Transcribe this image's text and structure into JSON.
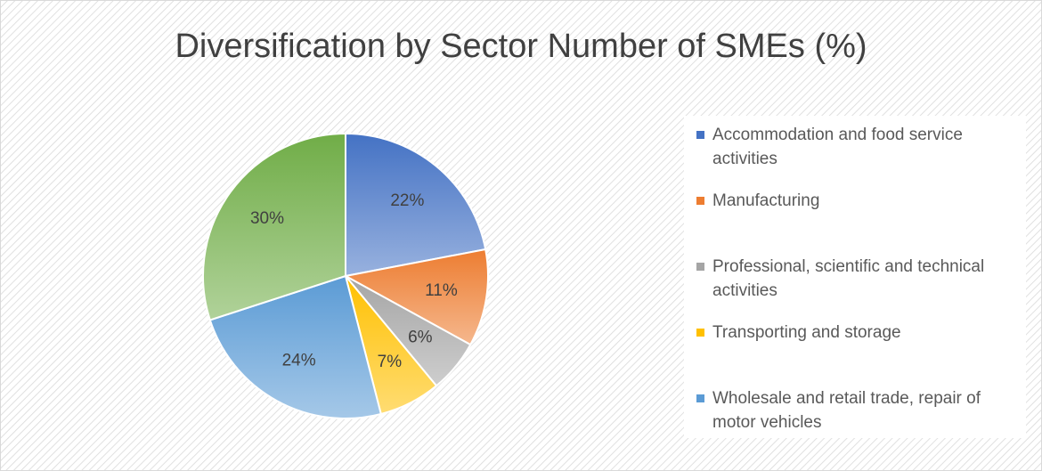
{
  "chart_data": {
    "type": "pie",
    "title": "Diversification by Sector Number of SMEs (%)",
    "categories": [
      "Accommodation and food service activities",
      "Manufacturing",
      "Professional, scientific and technical activities",
      "Transporting and storage",
      "Wholesale and retail trade, repair of motor vehicles",
      null
    ],
    "values": [
      22,
      11,
      6,
      7,
      24,
      30
    ],
    "value_labels": [
      "22%",
      "11%",
      "6%",
      "7%",
      "24%",
      "30%"
    ],
    "colors": [
      "#4472c4",
      "#ed7d31",
      "#a5a5a5",
      "#ffc000",
      "#5b9bd5",
      "#70ad47"
    ],
    "legend": "right"
  }
}
